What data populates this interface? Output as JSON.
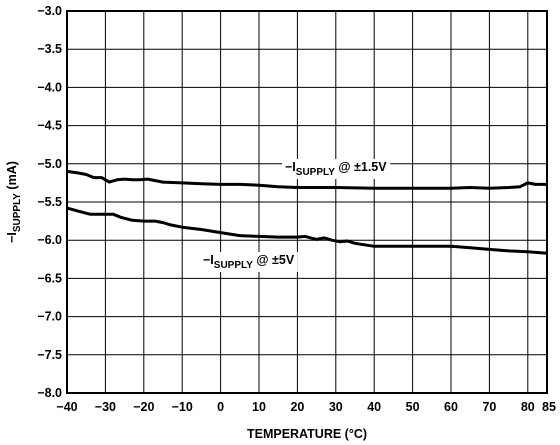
{
  "chart_data": {
    "type": "line",
    "title": "",
    "xlabel": "TEMPERATURE (°C)",
    "ylabel": {
      "prefix": "−I",
      "sub": "SUPPLY",
      "suffix": " (mA)"
    },
    "xlim": [
      -40,
      85
    ],
    "ylim": [
      -8.0,
      -3.0
    ],
    "x_ticks": [
      -40,
      -30,
      -20,
      -10,
      0,
      10,
      20,
      30,
      40,
      50,
      60,
      70,
      80,
      85
    ],
    "x_tick_labels": [
      "−40",
      "−30",
      "−20",
      "−10",
      "0",
      "10",
      "20",
      "30",
      "40",
      "50",
      "60",
      "70",
      "80",
      "85"
    ],
    "y_ticks": [
      -3.0,
      -3.5,
      -4.0,
      -4.5,
      -5.0,
      -5.5,
      -6.0,
      -6.5,
      -7.0,
      -7.5,
      -8.0
    ],
    "y_tick_labels": [
      "−3.0",
      "−3.5",
      "−4.0",
      "−4.5",
      "−5.0",
      "−5.5",
      "−6.0",
      "−6.5",
      "−7.0",
      "−7.5",
      "−8.0"
    ],
    "grid": true,
    "series": [
      {
        "name": "−I SUPPLY @ ±1.5V",
        "label": {
          "prefix": "−I",
          "sub": "SUPPLY",
          "suffix": " @ ±1.5V"
        },
        "x": [
          -40,
          -37,
          -35,
          -33,
          -31,
          -29,
          -27,
          -25,
          -23,
          -21,
          -19,
          -15,
          -10,
          -5,
          0,
          5,
          10,
          15,
          20,
          25,
          30,
          40,
          50,
          60,
          65,
          70,
          75,
          78,
          80,
          82,
          85
        ],
        "y": [
          -5.1,
          -5.12,
          -5.14,
          -5.18,
          -5.18,
          -5.24,
          -5.21,
          -5.2,
          -5.21,
          -5.21,
          -5.2,
          -5.24,
          -5.25,
          -5.26,
          -5.27,
          -5.27,
          -5.28,
          -5.3,
          -5.31,
          -5.31,
          -5.31,
          -5.32,
          -5.32,
          -5.32,
          -5.31,
          -5.32,
          -5.31,
          -5.3,
          -5.25,
          -5.27,
          -5.27
        ]
      },
      {
        "name": "−I SUPPLY @ ±5V",
        "label": {
          "prefix": "−I",
          "sub": "SUPPLY",
          "suffix": " @ ±5V"
        },
        "x": [
          -40,
          -37,
          -34,
          -31,
          -28,
          -26,
          -23,
          -20,
          -17,
          -15,
          -13,
          -10,
          -5,
          0,
          5,
          10,
          15,
          20,
          22,
          25,
          27,
          29,
          31,
          33,
          35,
          40,
          45,
          50,
          55,
          60,
          65,
          70,
          75,
          80,
          85
        ],
        "y": [
          -5.58,
          -5.62,
          -5.66,
          -5.66,
          -5.66,
          -5.7,
          -5.74,
          -5.75,
          -5.75,
          -5.77,
          -5.8,
          -5.83,
          -5.86,
          -5.9,
          -5.94,
          -5.95,
          -5.96,
          -5.96,
          -5.95,
          -5.99,
          -5.97,
          -6.0,
          -6.02,
          -6.01,
          -6.04,
          -6.08,
          -6.08,
          -6.08,
          -6.08,
          -6.08,
          -6.1,
          -6.12,
          -6.14,
          -6.15,
          -6.17
        ]
      }
    ]
  }
}
